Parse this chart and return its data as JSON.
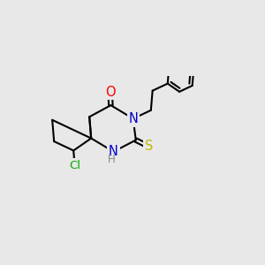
{
  "bg_color": "#e8e8e8",
  "bond_color": "#000000",
  "bond_width": 1.5,
  "atom_colors": {
    "O": "#ff0000",
    "N": "#0000cc",
    "S": "#bbbb00",
    "Cl": "#00aa00",
    "C": "#000000",
    "H": "#888888"
  },
  "font_size": 9.5,
  "fig_size": [
    3.0,
    3.0
  ],
  "dpi": 100,
  "xlim": [
    40,
    270
  ],
  "ylim": [
    95,
    225
  ]
}
